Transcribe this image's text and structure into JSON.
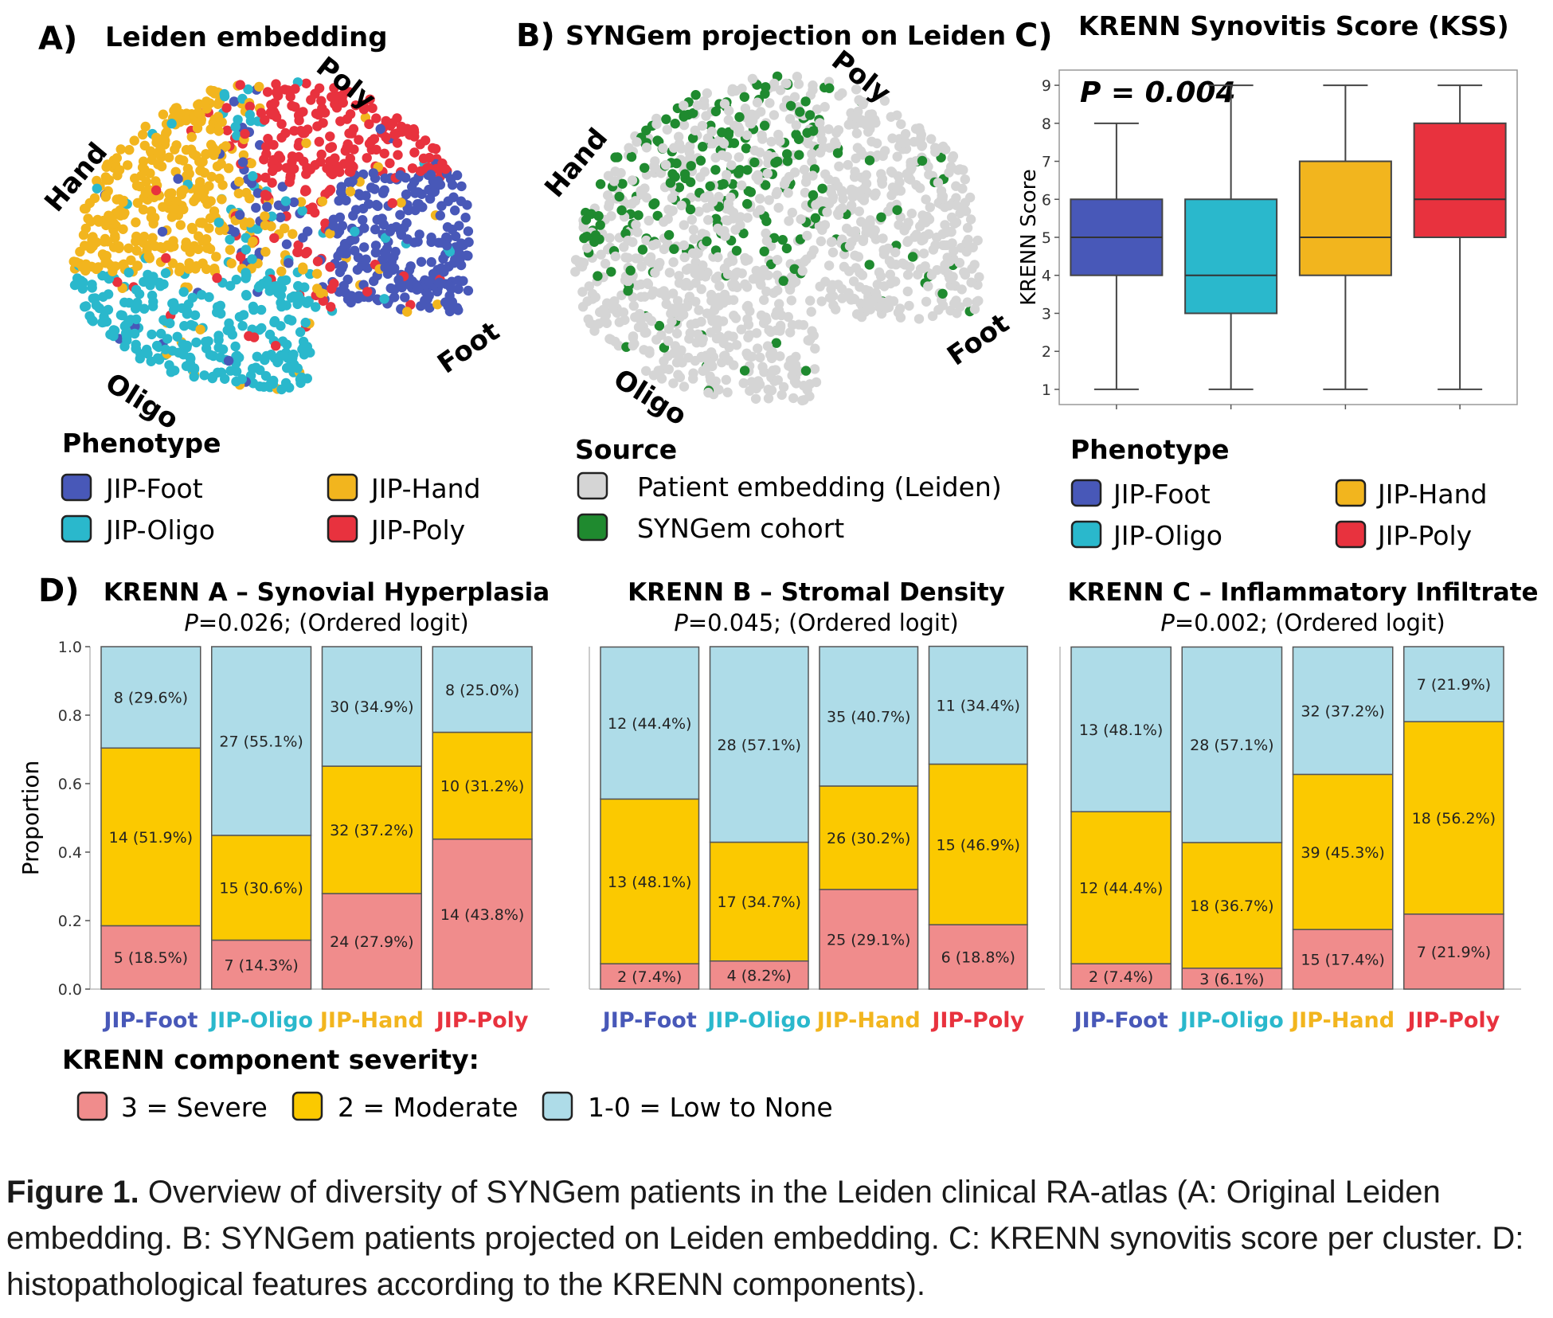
{
  "colors": {
    "JIP-Foot": "#4858b8",
    "JIP-Oligo": "#2ab8cc",
    "JIP-Hand": "#f2b51e",
    "JIP-Poly": "#e8323e",
    "grey": "#d5d5d5",
    "green": "#1f8a2f",
    "severe": "#f08c8c",
    "moderate": "#fbc900",
    "low": "#aedce8"
  },
  "panelA": {
    "letter": "A)",
    "title": "Leiden embedding",
    "cluster_labels": [
      "Hand",
      "Poly",
      "Foot",
      "Oligo"
    ],
    "legend_title": "Phenotype",
    "legend": [
      "JIP-Foot",
      "JIP-Hand",
      "JIP-Oligo",
      "JIP-Poly"
    ]
  },
  "panelB": {
    "letter": "B)",
    "title": "SYNGem projection on Leiden",
    "cluster_labels": [
      "Hand",
      "Poly",
      "Foot",
      "Oligo"
    ],
    "legend_title": "Source",
    "legend": [
      "Patient embedding (Leiden)",
      "SYNGem cohort"
    ]
  },
  "panelC": {
    "letter": "C)",
    "legend_title": "Phenotype",
    "legend": [
      "JIP-Foot",
      "JIP-Hand",
      "JIP-Oligo",
      "JIP-Poly"
    ]
  },
  "panelD": {
    "letter": "D)",
    "legend_title": "KRENN component severity:",
    "legend": [
      "3 = Severe",
      "2 = Moderate",
      "1-0 = Low to None"
    ]
  },
  "chart_data": [
    {
      "type": "scatter",
      "panel": "A",
      "title": "Leiden embedding",
      "series": [
        {
          "name": "JIP-Foot",
          "color": "#4858b8"
        },
        {
          "name": "JIP-Oligo",
          "color": "#2ab8cc"
        },
        {
          "name": "JIP-Hand",
          "color": "#f2b51e"
        },
        {
          "name": "JIP-Poly",
          "color": "#e8323e"
        }
      ],
      "annotations": [
        "Hand",
        "Poly",
        "Foot",
        "Oligo"
      ]
    },
    {
      "type": "scatter",
      "panel": "B",
      "title": "SYNGem projection on Leiden",
      "series": [
        {
          "name": "Patient embedding (Leiden)",
          "color": "#d5d5d5"
        },
        {
          "name": "SYNGem cohort",
          "color": "#1f8a2f"
        }
      ],
      "annotations": [
        "Hand",
        "Poly",
        "Foot",
        "Oligo"
      ]
    },
    {
      "type": "box",
      "panel": "C",
      "title": "KRENN Synovitis Score (KSS)",
      "annotation": "P = 0.004",
      "ylabel": "KRENN Score",
      "ylim": [
        0.6,
        9.4
      ],
      "yticks": [
        1,
        2,
        3,
        4,
        5,
        6,
        7,
        8,
        9
      ],
      "categories": [
        "JIP-Foot",
        "JIP-Oligo",
        "JIP-Hand",
        "JIP-Poly"
      ],
      "boxes": [
        {
          "name": "JIP-Foot",
          "min": 1,
          "q1": 4,
          "median": 5,
          "q3": 6,
          "max": 8
        },
        {
          "name": "JIP-Oligo",
          "min": 1,
          "q1": 3,
          "median": 4,
          "q3": 6,
          "max": 9
        },
        {
          "name": "JIP-Hand",
          "min": 1,
          "q1": 4,
          "median": 5,
          "q3": 7,
          "max": 9
        },
        {
          "name": "JIP-Poly",
          "min": 1,
          "q1": 5,
          "median": 6,
          "q3": 8,
          "max": 9
        }
      ]
    },
    {
      "type": "bar",
      "stacked": true,
      "panel": "D1",
      "title": "KRENN A – Synovial Hyperplasia",
      "subtitle_italic": "P",
      "subtitle_rest": "=0.026; (Ordered logit)",
      "ylabel": "Proportion",
      "ylim": [
        0,
        1
      ],
      "yticks": [
        "0.0",
        "0.2",
        "0.4",
        "0.6",
        "0.8",
        "1.0"
      ],
      "categories": [
        "JIP-Foot",
        "JIP-Oligo",
        "JIP-Hand",
        "JIP-Poly"
      ],
      "series": [
        {
          "name": "3 = Severe",
          "values": [
            0.185,
            0.143,
            0.279,
            0.438
          ],
          "labels": [
            "5 (18.5%)",
            "7 (14.3%)",
            "24 (27.9%)",
            "14 (43.8%)"
          ]
        },
        {
          "name": "2 = Moderate",
          "values": [
            0.519,
            0.306,
            0.372,
            0.312
          ],
          "labels": [
            "14 (51.9%)",
            "15 (30.6%)",
            "32 (37.2%)",
            "10 (31.2%)"
          ]
        },
        {
          "name": "1-0 = Low to None",
          "values": [
            0.296,
            0.551,
            0.349,
            0.25
          ],
          "labels": [
            "8 (29.6%)",
            "27 (55.1%)",
            "30 (34.9%)",
            "8 (25.0%)"
          ]
        }
      ]
    },
    {
      "type": "bar",
      "stacked": true,
      "panel": "D2",
      "title": "KRENN B – Stromal Density",
      "subtitle_italic": "P",
      "subtitle_rest": "=0.045; (Ordered logit)",
      "ylim": [
        0,
        1
      ],
      "categories": [
        "JIP-Foot",
        "JIP-Oligo",
        "JIP-Hand",
        "JIP-Poly"
      ],
      "series": [
        {
          "name": "3 = Severe",
          "values": [
            0.074,
            0.082,
            0.291,
            0.188
          ],
          "labels": [
            "2 (7.4%)",
            "4 (8.2%)",
            "25 (29.1%)",
            "6 (18.8%)"
          ]
        },
        {
          "name": "2 = Moderate",
          "values": [
            0.481,
            0.347,
            0.302,
            0.469
          ],
          "labels": [
            "13 (48.1%)",
            "17 (34.7%)",
            "26 (30.2%)",
            "15 (46.9%)"
          ]
        },
        {
          "name": "1-0 = Low to None",
          "values": [
            0.444,
            0.571,
            0.407,
            0.344
          ],
          "labels": [
            "12 (44.4%)",
            "28 (57.1%)",
            "35 (40.7%)",
            "11 (34.4%)"
          ]
        }
      ]
    },
    {
      "type": "bar",
      "stacked": true,
      "panel": "D3",
      "title": "KRENN C – Inflammatory Infiltrate",
      "subtitle_italic": "P",
      "subtitle_rest": "=0.002; (Ordered logit)",
      "ylim": [
        0,
        1
      ],
      "categories": [
        "JIP-Foot",
        "JIP-Oligo",
        "JIP-Hand",
        "JIP-Poly"
      ],
      "series": [
        {
          "name": "3 = Severe",
          "values": [
            0.074,
            0.061,
            0.174,
            0.219
          ],
          "labels": [
            "2 (7.4%)",
            "3 (6.1%)",
            "15 (17.4%)",
            "7 (21.9%)"
          ]
        },
        {
          "name": "2 = Moderate",
          "values": [
            0.444,
            0.367,
            0.453,
            0.562
          ],
          "labels": [
            "12 (44.4%)",
            "18 (36.7%)",
            "39 (45.3%)",
            "18 (56.2%)"
          ]
        },
        {
          "name": "1-0 = Low to None",
          "values": [
            0.481,
            0.571,
            0.372,
            0.219
          ],
          "labels": [
            "13 (48.1%)",
            "28 (57.1%)",
            "32 (37.2%)",
            "7 (21.9%)"
          ]
        }
      ]
    }
  ],
  "caption": {
    "label": "Figure 1.",
    "text": " Overview of diversity of SYNGem patients in the Leiden clinical RA-atlas (A: Original Leiden embedding. B: SYNGem patients projected on Leiden embedding. C: KRENN synovitis score per cluster. D: histopathological features according to the KRENN components)."
  }
}
